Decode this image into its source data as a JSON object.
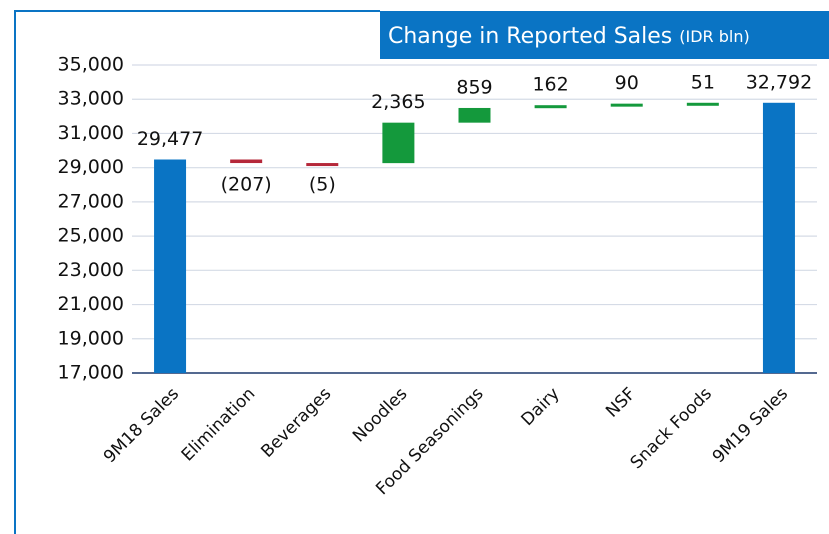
{
  "chart_data": {
    "type": "waterfall",
    "title": "Change in  Reported Sales",
    "unit": "(IDR bln)",
    "categories": [
      "9M18 Sales",
      "Elimination",
      "Beverages",
      "Noodles",
      "Food Seasonings",
      "Dairy",
      "NSF",
      "Snack Foods",
      "9M19 Sales"
    ],
    "values": [
      29477,
      -207,
      -5,
      2365,
      859,
      162,
      90,
      51,
      32792
    ],
    "value_labels": [
      "29,477",
      "(207)",
      "(5)",
      "2,365",
      "859",
      "162",
      "90",
      "51",
      "32,792"
    ],
    "measure": [
      "absolute",
      "relative",
      "relative",
      "relative",
      "relative",
      "relative",
      "relative",
      "relative",
      "absolute"
    ],
    "colors": {
      "total": "#0a74c4",
      "decrease": "#b5283a",
      "increase": "#14993c"
    },
    "ylim": [
      17000,
      35000
    ],
    "yticks": [
      {
        "value": 17000,
        "label": "17,000"
      },
      {
        "value": 19000,
        "label": "19,000"
      },
      {
        "value": 21000,
        "label": "21,000"
      },
      {
        "value": 23000,
        "label": "23,000"
      },
      {
        "value": 25000,
        "label": "25,000"
      },
      {
        "value": 27000,
        "label": "27,000"
      },
      {
        "value": 29000,
        "label": "29,000"
      },
      {
        "value": 31000,
        "label": "31,000"
      },
      {
        "value": 33000,
        "label": "33,000"
      },
      {
        "value": 35000,
        "label": "35,000"
      }
    ],
    "grid": true
  }
}
